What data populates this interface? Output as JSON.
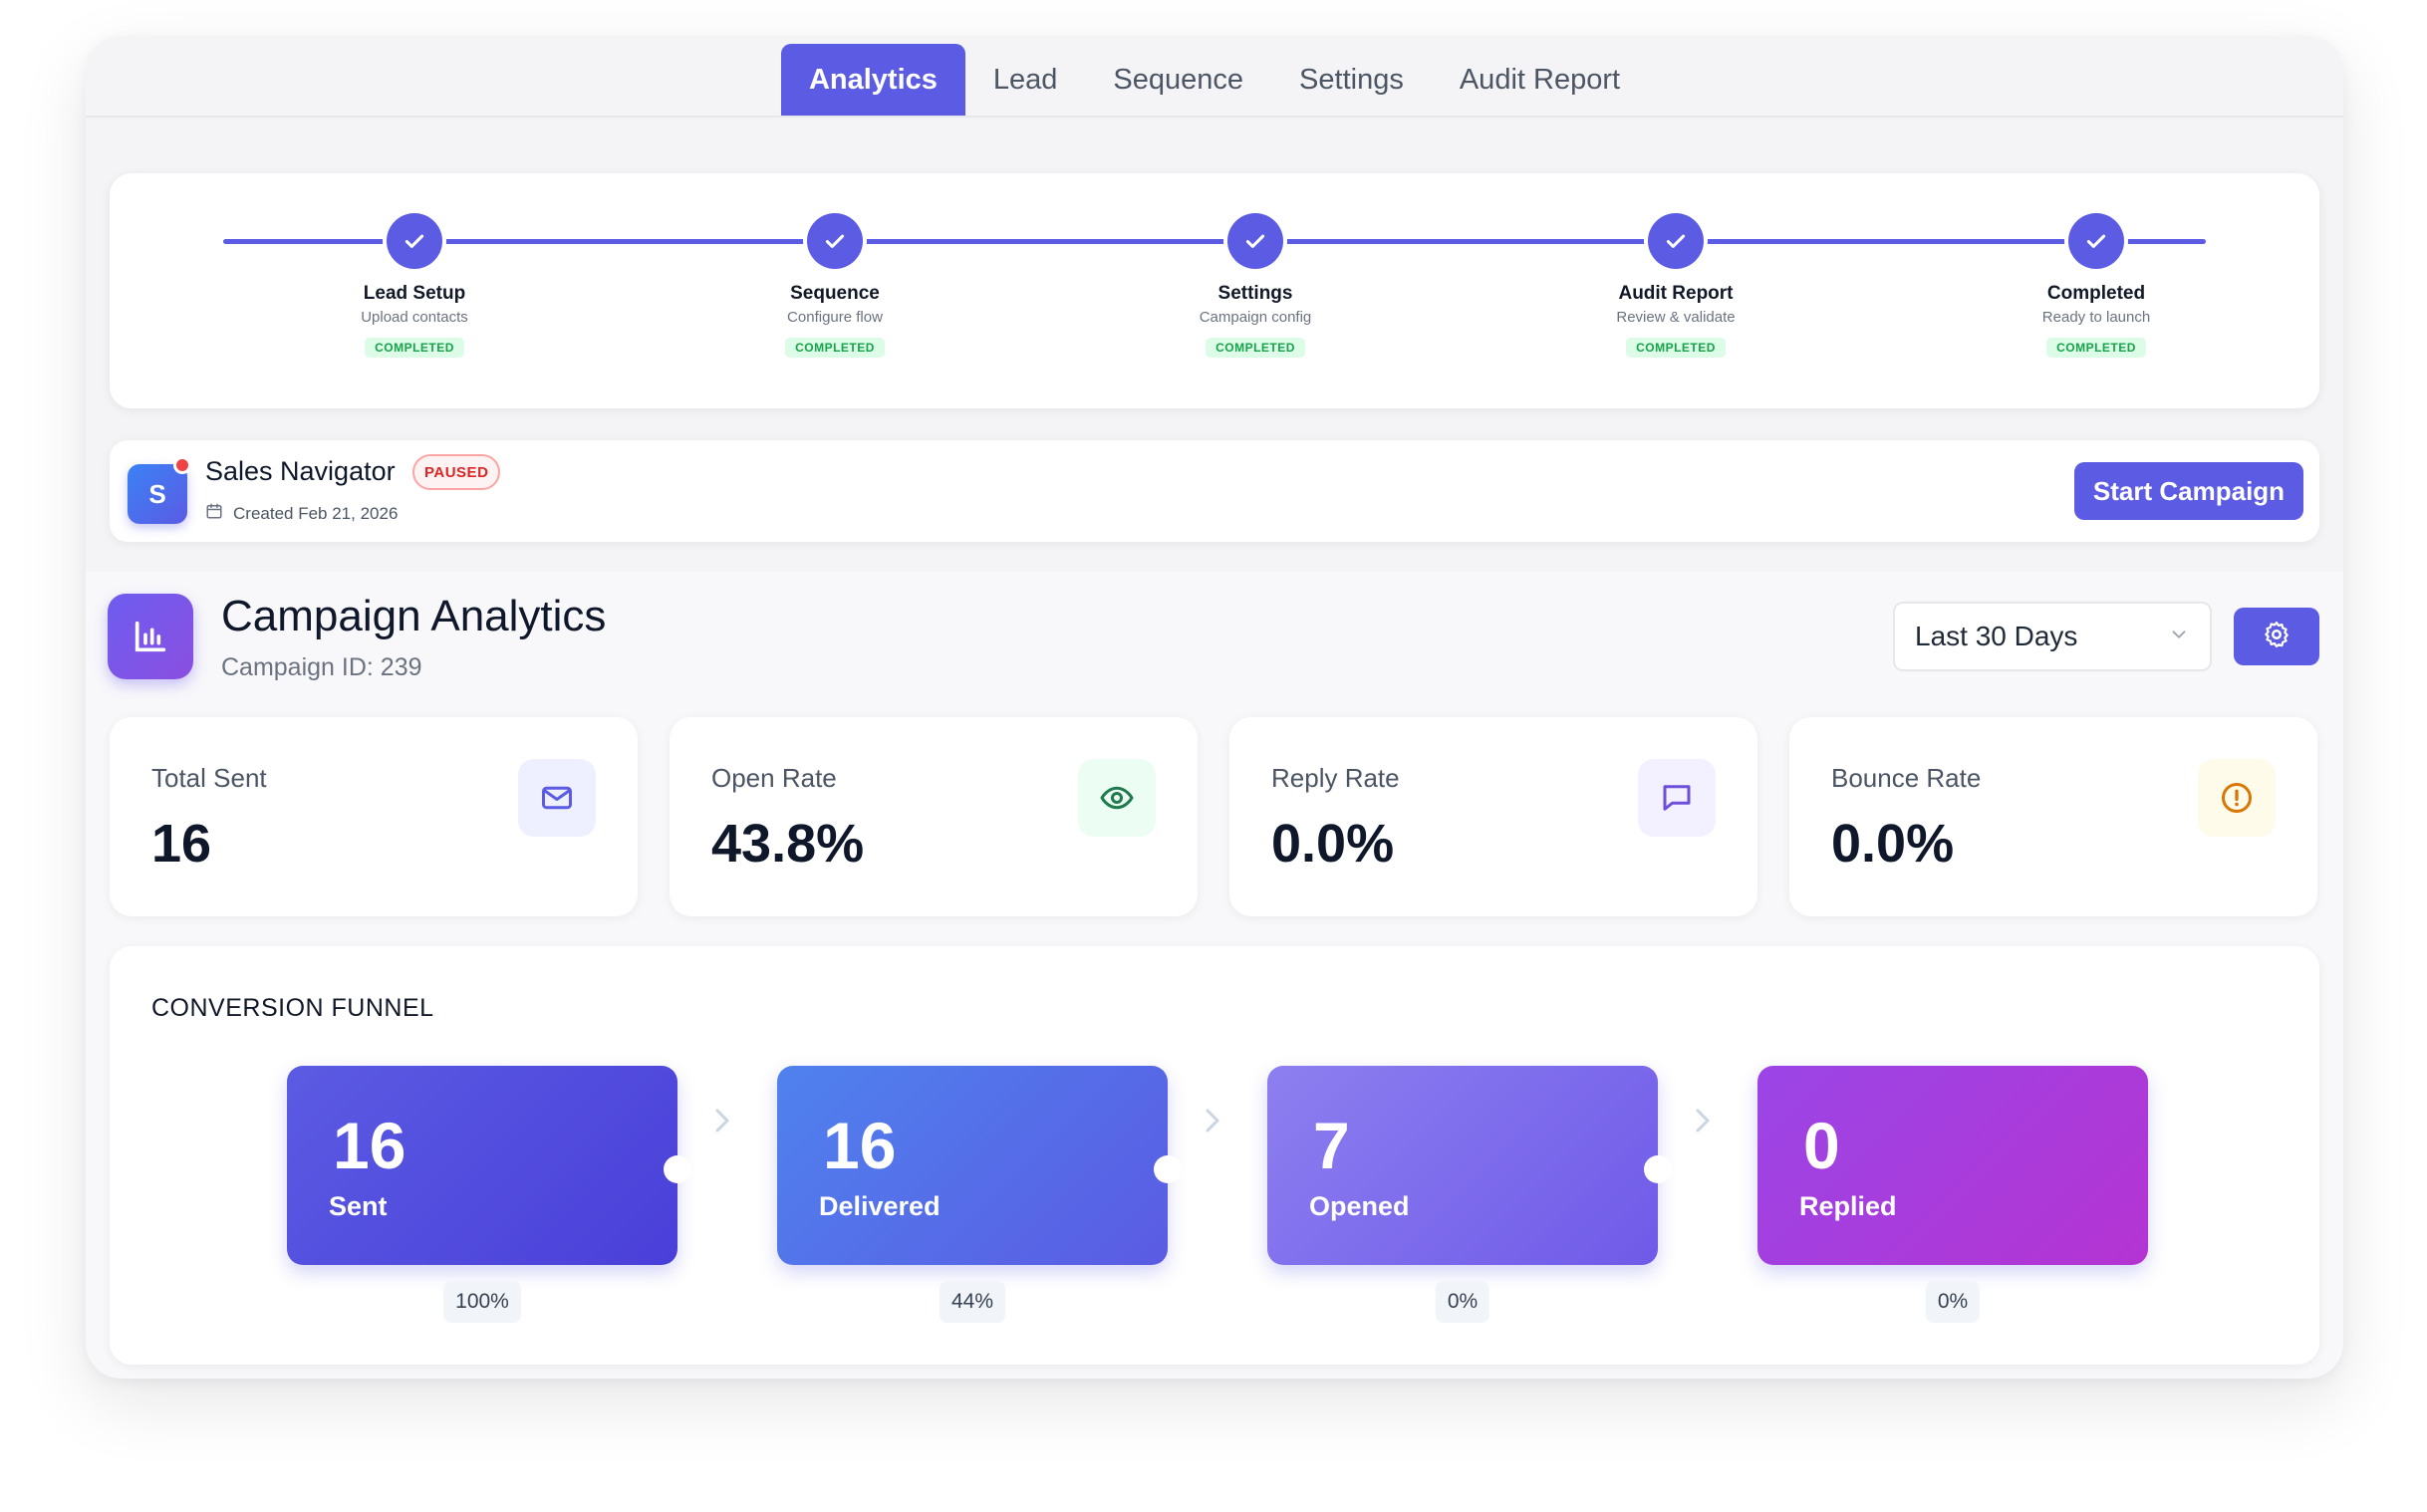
{
  "tabs": [
    {
      "label": "Analytics",
      "active": true
    },
    {
      "label": "Lead",
      "active": false
    },
    {
      "label": "Sequence",
      "active": false
    },
    {
      "label": "Settings",
      "active": false
    },
    {
      "label": "Audit Report",
      "active": false
    }
  ],
  "stepper": {
    "steps": [
      {
        "title": "Lead Setup",
        "subtitle": "Upload contacts",
        "status": "COMPLETED"
      },
      {
        "title": "Sequence",
        "subtitle": "Configure flow",
        "status": "COMPLETED"
      },
      {
        "title": "Settings",
        "subtitle": "Campaign config",
        "status": "COMPLETED"
      },
      {
        "title": "Audit Report",
        "subtitle": "Review & validate",
        "status": "COMPLETED"
      },
      {
        "title": "Completed",
        "subtitle": "Ready to launch",
        "status": "COMPLETED"
      }
    ]
  },
  "campaign": {
    "avatar_letter": "S",
    "name": "Sales Navigator",
    "status": "PAUSED",
    "created": "Created Feb 21, 2026",
    "start_button": "Start Campaign"
  },
  "analytics": {
    "title": "Campaign Analytics",
    "subtitle": "Campaign ID: 239",
    "range": "Last 30 Days",
    "stats": [
      {
        "label": "Total Sent",
        "value": "16",
        "icon": "mail-icon"
      },
      {
        "label": "Open Rate",
        "value": "43.8%",
        "icon": "eye-icon"
      },
      {
        "label": "Reply Rate",
        "value": "0.0%",
        "icon": "message-icon"
      },
      {
        "label": "Bounce Rate",
        "value": "0.0%",
        "icon": "alert-circle-icon"
      }
    ]
  },
  "funnel": {
    "title": "CONVERSION FUNNEL",
    "stages": [
      {
        "value": "16",
        "label": "Sent",
        "pct": "100%"
      },
      {
        "value": "16",
        "label": "Delivered",
        "pct": "44%"
      },
      {
        "value": "7",
        "label": "Opened",
        "pct": "0%"
      },
      {
        "value": "0",
        "label": "Replied",
        "pct": "0%"
      }
    ]
  },
  "colors": {
    "accent": "#5b5be3",
    "success_bg": "#dcfce7",
    "success_text": "#16a34a",
    "danger": "#dc2626"
  }
}
